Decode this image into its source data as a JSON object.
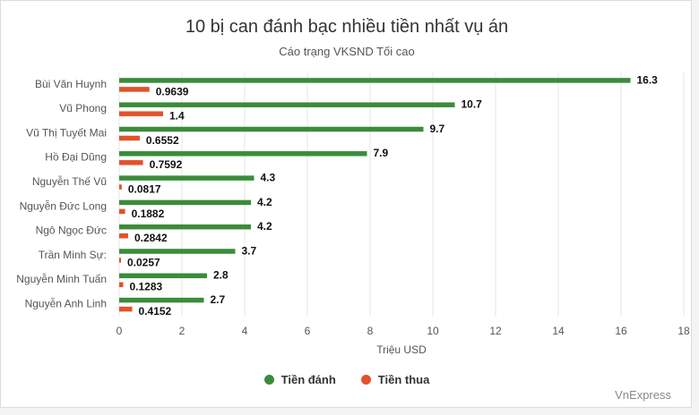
{
  "chart_data": {
    "type": "bar",
    "orientation": "horizontal",
    "title": "10 bị can đánh bạc nhiều tiền nhất vụ án",
    "subtitle": "Cáo trạng VKSND Tối cao",
    "xlabel": "Triệu USD",
    "ylabel": "",
    "xlim": [
      0,
      18
    ],
    "x_ticks": [
      0,
      2,
      4,
      6,
      8,
      10,
      12,
      14,
      16,
      18
    ],
    "grid": true,
    "legend_position": "bottom",
    "categories": [
      "Bùi Văn Huynh",
      "Vũ Phong",
      "Vũ Thị Tuyết Mai",
      "Hồ Đại Dũng",
      "Nguyễn Thế Vũ",
      "Nguyễn Đức Long",
      "Ngô Ngọc Đức",
      "Trần Minh Sự:",
      "Nguyễn Minh Tuấn",
      "Nguyễn Anh Linh"
    ],
    "series": [
      {
        "name": "Tiền đánh",
        "color": "#3a8c3a",
        "values": [
          16.3,
          10.7,
          9.7,
          7.9,
          4.3,
          4.2,
          4.2,
          3.7,
          2.8,
          2.7
        ],
        "labels": [
          "16.3",
          "10.7",
          "9.7",
          "7.9",
          "4.3",
          "4.2",
          "4.2",
          "3.7",
          "2.8",
          "2.7"
        ]
      },
      {
        "name": "Tiền thua",
        "color": "#e2522b",
        "values": [
          0.9639,
          1.4,
          0.6552,
          0.7592,
          0.0817,
          0.1882,
          0.2842,
          0.0257,
          0.1283,
          0.4152
        ],
        "labels": [
          "0.9639",
          "1.4",
          "0.6552",
          "0.7592",
          "0.0817",
          "0.1882",
          "0.2842",
          "0.0257",
          "0.1283",
          "0.4152"
        ]
      }
    ]
  },
  "credit": "VnExpress",
  "colors": {
    "grid": "#e6e6e6",
    "axis_text": "#555555",
    "value_text": "#111111"
  }
}
